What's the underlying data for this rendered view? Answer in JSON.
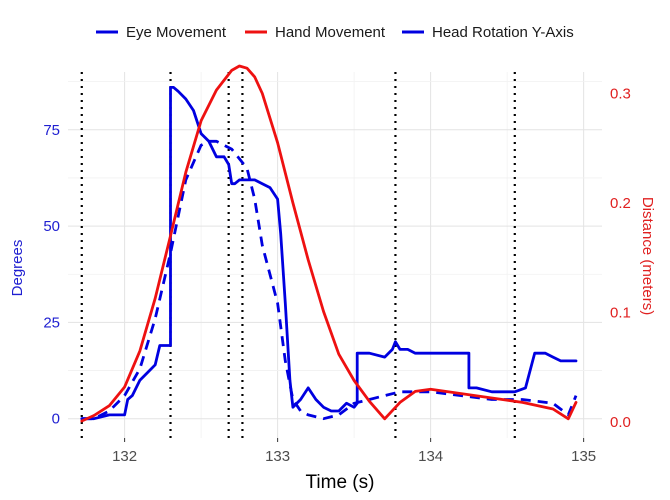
{
  "chart_data": {
    "type": "line",
    "legend": {
      "placement": "top",
      "entries": [
        {
          "label": "Eye Movement",
          "color": "#0000e0",
          "dash": "solid"
        },
        {
          "label": "Hand Movement",
          "color": "#ee1111",
          "dash": "solid"
        },
        {
          "label": "Head Rotation Y-Axis",
          "color": "#0000e0",
          "dash": "dashed"
        }
      ]
    },
    "xlabel": "Time (s)",
    "ylabel_left": "Degrees",
    "ylabel_right": "Distance (meters)",
    "xlim": [
      131.63,
      135.12
    ],
    "ylim_left": [
      -5,
      90
    ],
    "ylim_right": [
      -0.0145,
      0.3195
    ],
    "x_ticks": [
      132,
      133,
      134,
      135
    ],
    "y_ticks_left": [
      0,
      25,
      50,
      75
    ],
    "y_ticks_right": [
      0.0,
      0.1,
      0.2,
      0.3
    ],
    "grid": true,
    "vertical_markers": [
      131.72,
      132.3,
      132.68,
      132.77,
      133.77,
      134.55
    ],
    "series": [
      {
        "name": "Eye Movement",
        "axis": "left",
        "color": "#0000e0",
        "dash": "solid",
        "x": [
          131.72,
          131.8,
          131.9,
          132.0,
          132.02,
          132.05,
          132.1,
          132.15,
          132.2,
          132.23,
          132.23,
          132.3,
          132.3,
          132.32,
          132.35,
          132.4,
          132.45,
          132.5,
          132.55,
          132.6,
          132.65,
          132.68,
          132.7,
          132.72,
          132.75,
          132.8,
          132.85,
          132.9,
          132.95,
          133.0,
          133.02,
          133.05,
          133.08,
          133.1,
          133.15,
          133.2,
          133.25,
          133.3,
          133.35,
          133.4,
          133.45,
          133.5,
          133.52,
          133.52,
          133.6,
          133.7,
          133.75,
          133.77,
          133.8,
          133.85,
          133.9,
          134.0,
          134.1,
          134.2,
          134.25,
          134.25,
          134.3,
          134.4,
          134.5,
          134.55,
          134.62,
          134.62,
          134.68,
          134.75,
          134.8,
          134.85,
          134.9,
          134.95
        ],
        "y": [
          0,
          0,
          1,
          1,
          5,
          6,
          10,
          12,
          14,
          19,
          19,
          19,
          86,
          86,
          85,
          83,
          80,
          74,
          72,
          68,
          68,
          66,
          61,
          61,
          62,
          62,
          62,
          61,
          60,
          57,
          48,
          30,
          10,
          3,
          5,
          8,
          5,
          3,
          2,
          2,
          4,
          3,
          4,
          17,
          17,
          16,
          18,
          20,
          18,
          18,
          17,
          17,
          17,
          17,
          17,
          8,
          8,
          7,
          7,
          7,
          8,
          8,
          17,
          17,
          16,
          15,
          15,
          15
        ]
      },
      {
        "name": "Hand Movement",
        "axis": "right",
        "color": "#ee1111",
        "dash": "solid",
        "x": [
          131.72,
          131.8,
          131.9,
          132.0,
          132.1,
          132.2,
          132.3,
          132.4,
          132.5,
          132.6,
          132.7,
          132.75,
          132.8,
          132.85,
          132.9,
          133.0,
          133.1,
          133.2,
          133.3,
          133.4,
          133.5,
          133.6,
          133.7,
          133.8,
          133.9,
          134.0,
          134.2,
          134.4,
          134.6,
          134.8,
          134.9,
          134.95
        ],
        "y": [
          0.001,
          0.006,
          0.015,
          0.032,
          0.065,
          0.113,
          0.17,
          0.228,
          0.275,
          0.303,
          0.321,
          0.325,
          0.323,
          0.315,
          0.3,
          0.255,
          0.2,
          0.148,
          0.101,
          0.062,
          0.038,
          0.019,
          0.003,
          0.018,
          0.028,
          0.03,
          0.026,
          0.022,
          0.018,
          0.012,
          0.003,
          0.018
        ]
      },
      {
        "name": "Head Rotation Y-Axis",
        "axis": "left",
        "color": "#0000e0",
        "dash": "dashed",
        "x": [
          131.72,
          131.8,
          131.9,
          132.0,
          132.1,
          132.2,
          132.3,
          132.4,
          132.5,
          132.55,
          132.6,
          132.7,
          132.8,
          132.85,
          132.9,
          133.0,
          133.05,
          133.1,
          133.15,
          133.2,
          133.3,
          133.4,
          133.5,
          133.6,
          133.7,
          133.8,
          133.9,
          134.0,
          134.2,
          134.4,
          134.6,
          134.8,
          134.9,
          134.95
        ],
        "y": [
          0,
          0,
          2,
          6,
          13,
          26,
          43,
          62,
          71,
          72,
          72,
          70,
          65,
          57,
          45,
          30,
          15,
          5,
          2,
          1,
          0,
          1,
          4,
          5,
          6,
          7,
          7,
          7,
          6,
          5,
          5,
          4,
          1,
          6
        ]
      }
    ]
  }
}
